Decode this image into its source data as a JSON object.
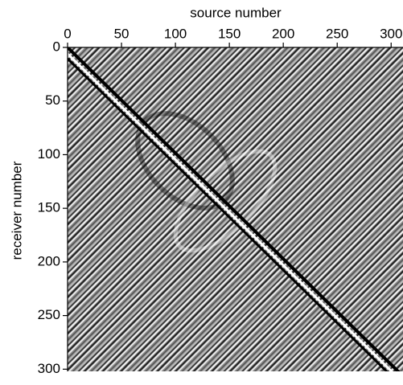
{
  "chart_data": {
    "type": "heatmap",
    "colormap": "gray",
    "xlabel": "source number",
    "ylabel": "receiver number",
    "xlim": [
      0,
      311
    ],
    "ylim": [
      0,
      302
    ],
    "xticks": [
      0,
      50,
      100,
      150,
      200,
      250,
      300
    ],
    "yticks": [
      0,
      50,
      100,
      150,
      200,
      250,
      300
    ],
    "x_axis_position": "top",
    "y_inverted": true
  }
}
